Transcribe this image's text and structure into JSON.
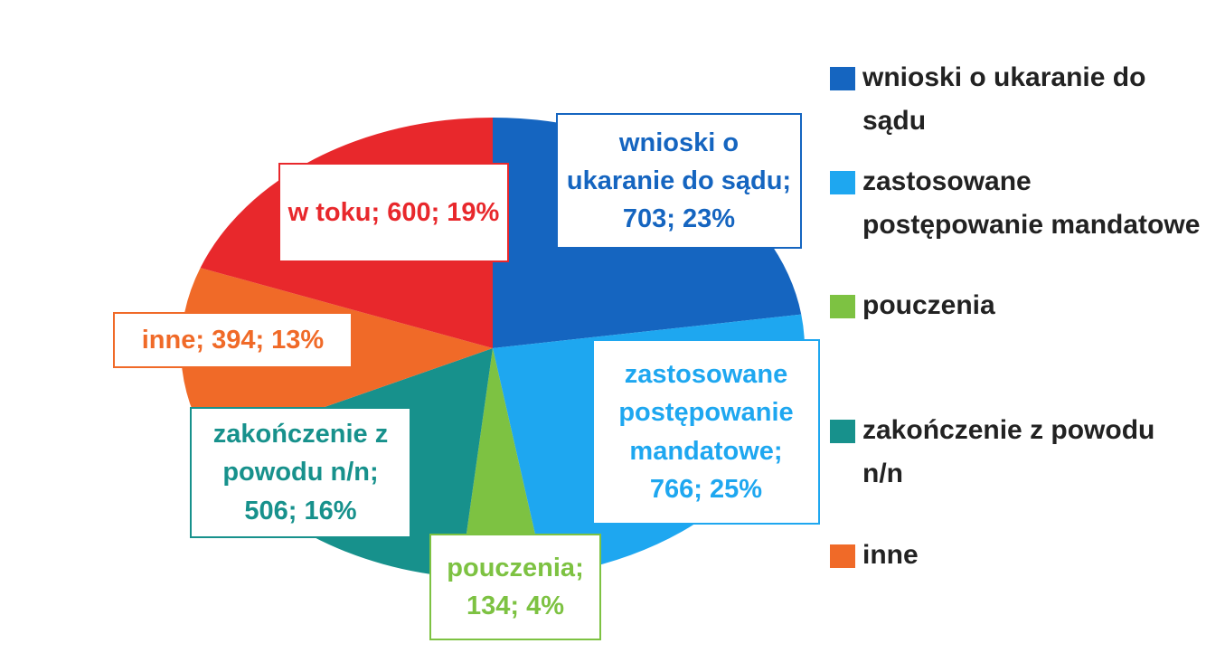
{
  "chart_data": {
    "type": "pie",
    "values": [
      703,
      766,
      134,
      506,
      394,
      600
    ],
    "value_labels": [
      "wnioski o ukaranie do sądu; 703; 23%",
      "zastosowane postępowanie mandatowe; 766; 25%",
      "pouczenia; 134; 4%",
      "zakończenie z powodu n/n; 506; 16%",
      "inne; 394; 13%",
      "w toku; 600; 19%"
    ],
    "colors": [
      "#1565c0",
      "#1ea7f0",
      "#7dc242",
      "#17918c",
      "#f06a28",
      "#e8282c"
    ],
    "legend": [
      {
        "name": "wnioski o ukaranie do sądu",
        "color": "#1565c0"
      },
      {
        "name": "zastosowane postępowanie mandatowe",
        "color": "#1ea7f0"
      },
      {
        "name": "pouczenia",
        "color": "#7dc242"
      },
      {
        "name": "zakończenie z powodu n/n",
        "color": "#17918c"
      },
      {
        "name": "inne",
        "color": "#f06a28"
      }
    ]
  }
}
